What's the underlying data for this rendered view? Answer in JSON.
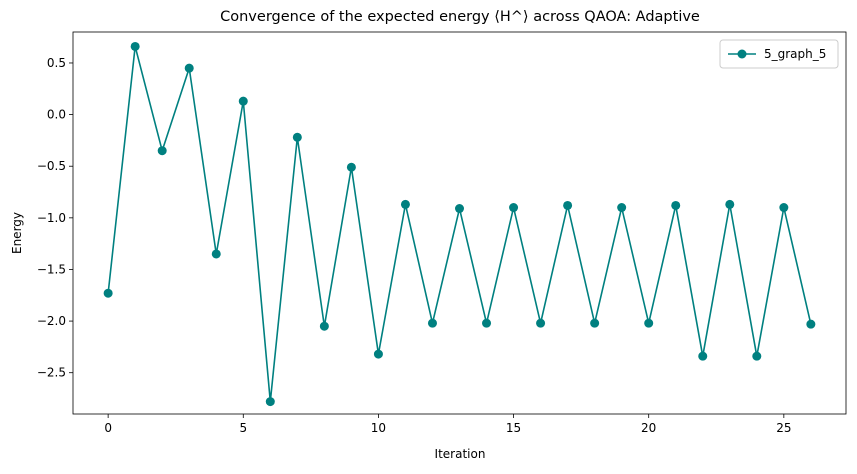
{
  "chart_data": {
    "type": "line",
    "title": "Convergence of the expected energy ⟨H^⟩ across QAOA: Adaptive",
    "xlabel": "Iteration",
    "ylabel": "Energy",
    "xlim": [
      -1.3,
      27.3
    ],
    "ylim": [
      -2.9,
      0.8
    ],
    "xticks": [
      0,
      5,
      10,
      15,
      20,
      25
    ],
    "yticks": [
      -2.5,
      -2.0,
      -1.5,
      -1.0,
      -0.5,
      0.0,
      0.5
    ],
    "xtick_labels": [
      "0",
      "5",
      "10",
      "15",
      "20",
      "25"
    ],
    "ytick_labels": [
      "−2.5",
      "−2.0",
      "−1.5",
      "−1.0",
      "−0.5",
      "0.0",
      "0.5"
    ],
    "grid": false,
    "legend_position": "top-right",
    "series": [
      {
        "name": "5_graph_5",
        "color": "#008080",
        "marker": "circle",
        "x": [
          0,
          1,
          2,
          3,
          4,
          5,
          6,
          7,
          8,
          9,
          10,
          11,
          12,
          13,
          14,
          15,
          16,
          17,
          18,
          19,
          20,
          21,
          22,
          23,
          24,
          25,
          26
        ],
        "values": [
          -1.73,
          0.66,
          -0.35,
          0.45,
          -1.35,
          0.13,
          -2.78,
          -0.22,
          -2.05,
          -0.51,
          -2.32,
          -0.87,
          -2.02,
          -0.91,
          -2.02,
          -0.9,
          -2.02,
          -0.88,
          -2.02,
          -0.9,
          -2.02,
          -0.88,
          -2.34,
          -0.87,
          -2.34,
          -0.9,
          -2.03
        ]
      }
    ]
  }
}
